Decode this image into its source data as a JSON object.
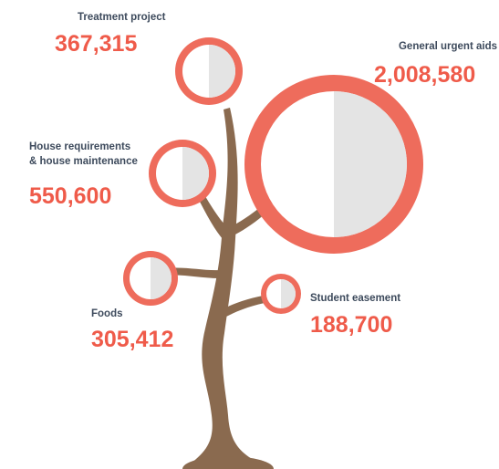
{
  "nodes": [
    {
      "label": [
        "Treatment project"
      ],
      "value": "367,315"
    },
    {
      "label": [
        "General urgent aids"
      ],
      "value": "2,008,580"
    },
    {
      "label": [
        "House requirements",
        "& house maintenance"
      ],
      "value": "550,600"
    },
    {
      "label": [
        "Foods"
      ],
      "value": "305,412"
    },
    {
      "label": [
        "Student easement"
      ],
      "value": "188,700"
    }
  ]
}
